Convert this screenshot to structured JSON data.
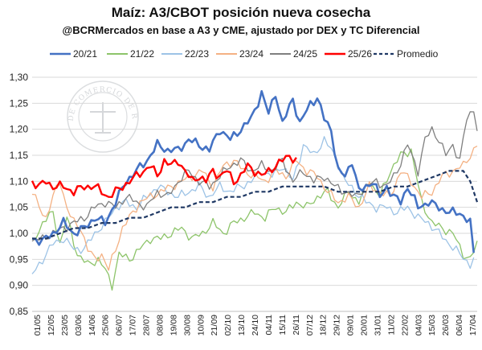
{
  "chart_data": {
    "type": "line",
    "title": "Maíz: A3/CBOT posición nueva cosecha",
    "subtitle": "@BCRMercados en base a A3 y CME, ajustado por DEX y TC Diferencial",
    "watermark": "BOLSA DE COMERCIO DE ROSARIO",
    "ylim": [
      0.85,
      1.3
    ],
    "yticks": [
      "0,85",
      "0,90",
      "0,95",
      "1,00",
      "1,05",
      "1,10",
      "1,15",
      "1,20",
      "1,25",
      "1,30"
    ],
    "ytick_values": [
      0.85,
      0.9,
      0.95,
      1.0,
      1.05,
      1.1,
      1.15,
      1.2,
      1.25,
      1.3
    ],
    "x_categories": [
      "01/05",
      "12/05",
      "23/05",
      "03/06",
      "14/06",
      "25/06",
      "06/07",
      "17/07",
      "28/07",
      "08/08",
      "19/08",
      "30/08",
      "10/09",
      "21/09",
      "02/10",
      "13/10",
      "24/10",
      "04/11",
      "15/11",
      "26/11",
      "07/12",
      "18/12",
      "29/12",
      "09/01",
      "20/01",
      "31/01",
      "11/02",
      "22/02",
      "04/03",
      "15/03",
      "26/03",
      "06/04",
      "17/04"
    ],
    "n_points": 99,
    "series": [
      {
        "name": "20/21",
        "color": "#4472c4",
        "width": 2.6,
        "dash": "",
        "anchors": [
          [
            0,
            0.99
          ],
          [
            3,
            0.985
          ],
          [
            6,
            1.0
          ],
          [
            9,
            1.02
          ],
          [
            12,
            1.0
          ],
          [
            15,
            1.01
          ],
          [
            18,
            1.03
          ],
          [
            21,
            1.02
          ],
          [
            24,
            1.06
          ],
          [
            27,
            1.1
          ],
          [
            30,
            1.12
          ],
          [
            33,
            1.14
          ],
          [
            36,
            1.17
          ],
          [
            39,
            1.16
          ],
          [
            42,
            1.16
          ],
          [
            45,
            1.18
          ],
          [
            48,
            1.17
          ],
          [
            51,
            1.16
          ],
          [
            54,
            1.2
          ],
          [
            57,
            1.18
          ],
          [
            60,
            1.2
          ],
          [
            63,
            1.22
          ],
          [
            66,
            1.27
          ],
          [
            68,
            1.23
          ],
          [
            70,
            1.27
          ],
          [
            72,
            1.21
          ],
          [
            75,
            1.26
          ],
          [
            77,
            1.21
          ],
          [
            80,
            1.25
          ],
          [
            82,
            1.26
          ],
          [
            84,
            1.22
          ],
          [
            86,
            1.2
          ],
          [
            88,
            1.12
          ],
          [
            90,
            1.11
          ],
          [
            92,
            1.14
          ],
          [
            94,
            1.08
          ],
          [
            96,
            1.09
          ],
          [
            98,
            1.1
          ],
          [
            100,
            1.07
          ],
          [
            102,
            1.09
          ],
          [
            104,
            1.07
          ],
          [
            106,
            1.06
          ],
          [
            108,
            1.09
          ],
          [
            111,
            1.05
          ],
          [
            114,
            1.06
          ],
          [
            117,
            1.05
          ],
          [
            120,
            1.04
          ],
          [
            123,
            1.04
          ],
          [
            126,
            1.02
          ],
          [
            127,
            0.96
          ]
        ]
      },
      {
        "name": "21/22",
        "color": "#8dc46a",
        "width": 1.3,
        "dash": "",
        "anchors": [
          [
            0,
            0.98
          ],
          [
            3,
            1.02
          ],
          [
            6,
            1.04
          ],
          [
            8,
            0.98
          ],
          [
            10,
            1.03
          ],
          [
            13,
            0.96
          ],
          [
            16,
            0.94
          ],
          [
            19,
            0.95
          ],
          [
            21,
            0.93
          ],
          [
            23,
            0.9
          ],
          [
            25,
            0.96
          ],
          [
            28,
            0.95
          ],
          [
            31,
            0.97
          ],
          [
            34,
            0.99
          ],
          [
            37,
            0.99
          ],
          [
            40,
            1.0
          ],
          [
            43,
            1.01
          ],
          [
            46,
            0.99
          ],
          [
            49,
            1.0
          ],
          [
            52,
            1.02
          ],
          [
            55,
            1.0
          ],
          [
            58,
            1.02
          ],
          [
            61,
            1.03
          ],
          [
            64,
            1.04
          ],
          [
            67,
            1.03
          ],
          [
            70,
            1.05
          ],
          [
            73,
            1.04
          ],
          [
            76,
            1.06
          ],
          [
            79,
            1.05
          ],
          [
            82,
            1.07
          ],
          [
            85,
            1.08
          ],
          [
            88,
            1.05
          ],
          [
            91,
            1.08
          ],
          [
            94,
            1.06
          ],
          [
            97,
            1.1
          ],
          [
            100,
            1.07
          ],
          [
            103,
            1.12
          ],
          [
            106,
            1.15
          ],
          [
            109,
            1.16
          ],
          [
            112,
            1.06
          ],
          [
            115,
            1.02
          ],
          [
            118,
            1.01
          ],
          [
            121,
            1.0
          ],
          [
            124,
            0.96
          ],
          [
            126,
            0.95
          ],
          [
            128,
            0.98
          ]
        ]
      },
      {
        "name": "22/23",
        "color": "#9dc3e6",
        "width": 1.3,
        "dash": "",
        "anchors": [
          [
            0,
            0.92
          ],
          [
            3,
            0.95
          ],
          [
            6,
            0.98
          ],
          [
            9,
            0.99
          ],
          [
            12,
            0.97
          ],
          [
            15,
            0.97
          ],
          [
            18,
            1.0
          ],
          [
            21,
            1.02
          ],
          [
            24,
            1.05
          ],
          [
            27,
            1.06
          ],
          [
            30,
            1.05
          ],
          [
            33,
            1.07
          ],
          [
            36,
            1.09
          ],
          [
            39,
            1.08
          ],
          [
            42,
            1.07
          ],
          [
            45,
            1.08
          ],
          [
            48,
            1.09
          ],
          [
            51,
            1.07
          ],
          [
            54,
            1.09
          ],
          [
            57,
            1.08
          ],
          [
            60,
            1.09
          ],
          [
            63,
            1.1
          ],
          [
            66,
            1.12
          ],
          [
            69,
            1.11
          ],
          [
            72,
            1.13
          ],
          [
            75,
            1.1
          ],
          [
            78,
            1.17
          ],
          [
            81,
            1.15
          ],
          [
            84,
            1.18
          ],
          [
            87,
            1.15
          ],
          [
            90,
            1.1
          ],
          [
            93,
            1.08
          ],
          [
            96,
            1.06
          ],
          [
            99,
            1.05
          ],
          [
            102,
            1.05
          ],
          [
            105,
            1.04
          ],
          [
            108,
            1.05
          ],
          [
            111,
            1.03
          ],
          [
            114,
            1.02
          ],
          [
            117,
            1.0
          ],
          [
            120,
            0.98
          ],
          [
            123,
            0.96
          ],
          [
            126,
            0.94
          ],
          [
            127,
            0.95
          ]
        ]
      },
      {
        "name": "23/24",
        "color": "#f4b183",
        "width": 1.3,
        "dash": "",
        "anchors": [
          [
            0,
            1.08
          ],
          [
            2,
            1.05
          ],
          [
            4,
            1.03
          ],
          [
            6,
            1.07
          ],
          [
            8,
            1.1
          ],
          [
            10,
            1.05
          ],
          [
            12,
            1.02
          ],
          [
            14,
            1.01
          ],
          [
            16,
            0.97
          ],
          [
            18,
            0.95
          ],
          [
            20,
            0.96
          ],
          [
            22,
            0.93
          ],
          [
            24,
            0.97
          ],
          [
            26,
            1.01
          ],
          [
            28,
            1.03
          ],
          [
            31,
            1.06
          ],
          [
            34,
            1.07
          ],
          [
            37,
            1.08
          ],
          [
            40,
            1.09
          ],
          [
            43,
            1.1
          ],
          [
            46,
            1.11
          ],
          [
            49,
            1.12
          ],
          [
            52,
            1.09
          ],
          [
            55,
            1.13
          ],
          [
            58,
            1.14
          ],
          [
            61,
            1.12
          ],
          [
            64,
            1.11
          ],
          [
            67,
            1.1
          ],
          [
            70,
            1.12
          ],
          [
            73,
            1.11
          ],
          [
            76,
            1.14
          ],
          [
            79,
            1.12
          ],
          [
            82,
            1.11
          ],
          [
            85,
            1.08
          ],
          [
            88,
            1.06
          ],
          [
            91,
            1.07
          ],
          [
            94,
            1.05
          ],
          [
            97,
            1.09
          ],
          [
            100,
            1.08
          ],
          [
            103,
            1.07
          ],
          [
            106,
            1.12
          ],
          [
            109,
            1.1
          ],
          [
            112,
            1.07
          ],
          [
            115,
            1.08
          ],
          [
            118,
            1.11
          ],
          [
            121,
            1.12
          ],
          [
            124,
            1.13
          ],
          [
            126,
            1.15
          ],
          [
            128,
            1.17
          ]
        ]
      },
      {
        "name": "24/25",
        "color": "#7f7f7f",
        "width": 1.3,
        "dash": "",
        "anchors": [
          [
            0,
            0.985
          ],
          [
            3,
            0.99
          ],
          [
            6,
            1.0
          ],
          [
            9,
            1.01
          ],
          [
            12,
            1.02
          ],
          [
            15,
            1.03
          ],
          [
            18,
            1.05
          ],
          [
            21,
            1.06
          ],
          [
            24,
            1.05
          ],
          [
            27,
            1.07
          ],
          [
            30,
            1.06
          ],
          [
            33,
            1.05
          ],
          [
            36,
            1.08
          ],
          [
            39,
            1.07
          ],
          [
            42,
            1.1
          ],
          [
            45,
            1.12
          ],
          [
            48,
            1.1
          ],
          [
            51,
            1.09
          ],
          [
            54,
            1.11
          ],
          [
            57,
            1.13
          ],
          [
            60,
            1.14
          ],
          [
            63,
            1.12
          ],
          [
            66,
            1.13
          ],
          [
            69,
            1.12
          ],
          [
            72,
            1.14
          ],
          [
            75,
            1.1
          ],
          [
            78,
            1.12
          ],
          [
            81,
            1.1
          ],
          [
            84,
            1.11
          ],
          [
            87,
            1.09
          ],
          [
            90,
            1.08
          ],
          [
            93,
            1.07
          ],
          [
            96,
            1.09
          ],
          [
            99,
            1.1
          ],
          [
            102,
            1.09
          ],
          [
            105,
            1.12
          ],
          [
            108,
            1.17
          ],
          [
            111,
            1.12
          ],
          [
            113,
            1.18
          ],
          [
            115,
            1.2
          ],
          [
            117,
            1.18
          ],
          [
            119,
            1.15
          ],
          [
            121,
            1.17
          ],
          [
            123,
            1.14
          ],
          [
            125,
            1.22
          ],
          [
            127,
            1.24
          ],
          [
            128,
            1.2
          ]
        ]
      },
      {
        "name": "25/26",
        "color": "#ff0000",
        "width": 2.4,
        "dash": "",
        "anchors": [
          [
            0,
            1.1
          ],
          [
            2,
            1.09
          ],
          [
            4,
            1.1
          ],
          [
            6,
            1.09
          ],
          [
            9,
            1.09
          ],
          [
            12,
            1.08
          ],
          [
            15,
            1.09
          ],
          [
            18,
            1.09
          ],
          [
            20,
            1.08
          ],
          [
            22,
            1.07
          ],
          [
            24,
            1.08
          ],
          [
            26,
            1.09
          ],
          [
            28,
            1.1
          ],
          [
            30,
            1.11
          ],
          [
            32,
            1.12
          ],
          [
            34,
            1.13
          ],
          [
            36,
            1.11
          ],
          [
            38,
            1.14
          ],
          [
            40,
            1.13
          ],
          [
            42,
            1.14
          ],
          [
            44,
            1.12
          ],
          [
            46,
            1.1
          ],
          [
            48,
            1.11
          ],
          [
            50,
            1.1
          ],
          [
            52,
            1.12
          ],
          [
            54,
            1.11
          ],
          [
            56,
            1.12
          ],
          [
            58,
            1.1
          ],
          [
            60,
            1.11
          ],
          [
            62,
            1.13
          ],
          [
            64,
            1.12
          ],
          [
            66,
            1.11
          ],
          [
            68,
            1.12
          ],
          [
            70,
            1.13
          ],
          [
            72,
            1.14
          ],
          [
            74,
            1.15
          ],
          [
            76,
            1.14
          ]
        ]
      },
      {
        "name": "Promedio",
        "color": "#1f3864",
        "width": 2.2,
        "dash": "5 3",
        "anchors": [
          [
            0,
            0.99
          ],
          [
            4,
            0.99
          ],
          [
            8,
            1.0
          ],
          [
            12,
            1.01
          ],
          [
            16,
            1.01
          ],
          [
            20,
            1.02
          ],
          [
            24,
            1.02
          ],
          [
            28,
            1.03
          ],
          [
            32,
            1.03
          ],
          [
            36,
            1.04
          ],
          [
            40,
            1.05
          ],
          [
            44,
            1.05
          ],
          [
            48,
            1.06
          ],
          [
            52,
            1.06
          ],
          [
            56,
            1.07
          ],
          [
            60,
            1.07
          ],
          [
            64,
            1.08
          ],
          [
            68,
            1.08
          ],
          [
            72,
            1.09
          ],
          [
            76,
            1.09
          ],
          [
            80,
            1.09
          ],
          [
            84,
            1.09
          ],
          [
            88,
            1.08
          ],
          [
            92,
            1.08
          ],
          [
            96,
            1.08
          ],
          [
            100,
            1.08
          ],
          [
            104,
            1.09
          ],
          [
            108,
            1.09
          ],
          [
            112,
            1.1
          ],
          [
            116,
            1.11
          ],
          [
            120,
            1.12
          ],
          [
            124,
            1.12
          ],
          [
            126,
            1.1
          ],
          [
            128,
            1.06
          ]
        ]
      }
    ],
    "legend_position": "top"
  }
}
